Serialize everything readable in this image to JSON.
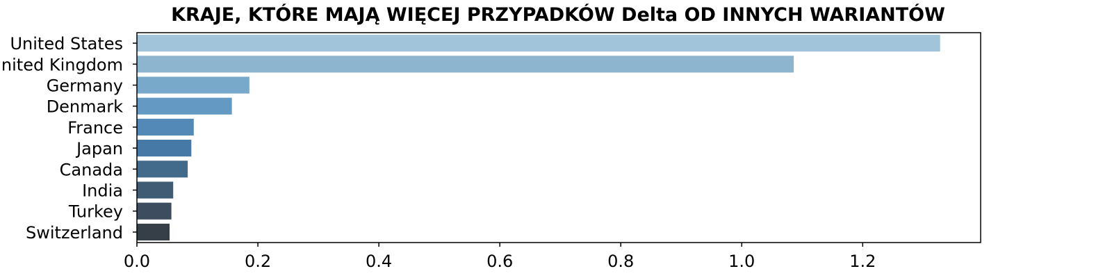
{
  "chart_data": {
    "type": "bar",
    "orientation": "horizontal",
    "title": "KRAJE, KTÓRE MAJĄ WIĘCEJ PRZYPADKÓW Delta OD INNYCH WARIANTÓW",
    "xlabel": "",
    "ylabel": "",
    "categories": [
      "United States",
      "United Kingdom",
      "Germany",
      "Denmark",
      "France",
      "Japan",
      "Canada",
      "India",
      "Turkey",
      "Switzerland"
    ],
    "values": [
      1.328,
      1.086,
      0.186,
      0.157,
      0.094,
      0.09,
      0.084,
      0.06,
      0.057,
      0.054
    ],
    "xlim": [
      0,
      1.395
    ],
    "xticks": [
      0.0,
      0.2,
      0.4,
      0.6,
      0.8,
      1.0,
      1.2
    ],
    "xtick_labels": [
      "0.0",
      "0.2",
      "0.4",
      "0.6",
      "0.8",
      "1.0",
      "1.2"
    ],
    "grid": false,
    "colors": [
      "#a2c4da",
      "#8db5d0",
      "#78a9cb",
      "#6399c2",
      "#5289b6",
      "#4679a5",
      "#426a8b",
      "#405c74",
      "#3d4c5f",
      "#363f47"
    ]
  }
}
